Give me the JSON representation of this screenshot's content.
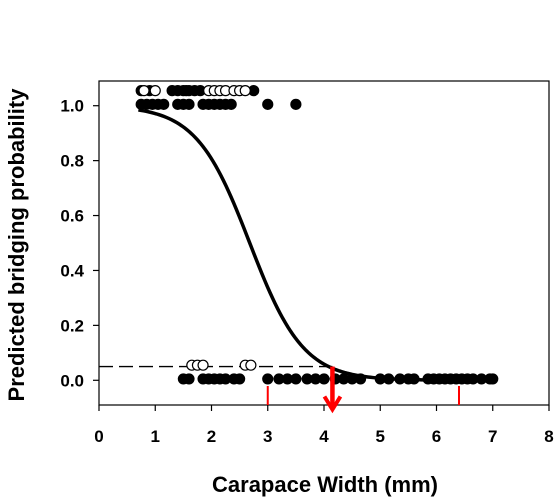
{
  "chart_data": {
    "type": "scatter",
    "title": "",
    "xlabel": "Carapace Width (mm)",
    "ylabel": "Predicted bridging probability",
    "xlim": [
      0,
      8
    ],
    "ylim": [
      -0.09,
      1.09
    ],
    "x_ticks": [
      0,
      1,
      2,
      3,
      4,
      5,
      6,
      7,
      8
    ],
    "y_ticks": [
      0.0,
      0.2,
      0.4,
      0.6,
      0.8,
      1.0
    ],
    "x_tick_labels": [
      "0",
      "1",
      "2",
      "3",
      "4",
      "5",
      "6",
      "7",
      "8"
    ],
    "y_tick_labels": [
      "0.0",
      "0.2",
      "0.4",
      "0.6",
      "0.8",
      "1.0"
    ],
    "grid": false,
    "legend": "none",
    "series": [
      {
        "style": "filled-circle",
        "color": "#000000",
        "points": [
          [
            0.75,
            1.055
          ],
          [
            0.9,
            1.055
          ],
          [
            1.3,
            1.055
          ],
          [
            1.4,
            1.055
          ],
          [
            1.5,
            1.055
          ],
          [
            1.55,
            1.055
          ],
          [
            1.6,
            1.055
          ],
          [
            1.7,
            1.055
          ],
          [
            1.8,
            1.055
          ],
          [
            2.75,
            1.055
          ],
          [
            0.75,
            1.005
          ],
          [
            0.85,
            1.005
          ],
          [
            0.95,
            1.005
          ],
          [
            1.05,
            1.005
          ],
          [
            1.15,
            1.005
          ],
          [
            1.4,
            1.005
          ],
          [
            1.5,
            1.005
          ],
          [
            1.6,
            1.005
          ],
          [
            1.85,
            1.005
          ],
          [
            1.95,
            1.005
          ],
          [
            2.05,
            1.005
          ],
          [
            2.15,
            1.005
          ],
          [
            2.25,
            1.005
          ],
          [
            2.35,
            1.005
          ],
          [
            3.0,
            1.005
          ],
          [
            3.5,
            1.005
          ],
          [
            1.5,
            0.005
          ],
          [
            1.6,
            0.005
          ],
          [
            1.85,
            0.005
          ],
          [
            1.95,
            0.005
          ],
          [
            2.05,
            0.005
          ],
          [
            2.15,
            0.005
          ],
          [
            2.25,
            0.005
          ],
          [
            2.4,
            0.005
          ],
          [
            2.5,
            0.005
          ],
          [
            3.0,
            0.005
          ],
          [
            3.2,
            0.005
          ],
          [
            3.35,
            0.005
          ],
          [
            3.5,
            0.005
          ],
          [
            3.7,
            0.005
          ],
          [
            3.85,
            0.005
          ],
          [
            4.0,
            0.005
          ],
          [
            4.2,
            0.005
          ],
          [
            4.35,
            0.005
          ],
          [
            4.5,
            0.005
          ],
          [
            4.65,
            0.005
          ],
          [
            5.0,
            0.005
          ],
          [
            5.15,
            0.005
          ],
          [
            5.35,
            0.005
          ],
          [
            5.5,
            0.005
          ],
          [
            5.6,
            0.005
          ],
          [
            5.85,
            0.005
          ],
          [
            5.95,
            0.005
          ],
          [
            6.05,
            0.005
          ],
          [
            6.15,
            0.005
          ],
          [
            6.25,
            0.005
          ],
          [
            6.35,
            0.005
          ],
          [
            6.45,
            0.005
          ],
          [
            6.55,
            0.005
          ],
          [
            6.65,
            0.005
          ],
          [
            6.8,
            0.005
          ],
          [
            6.95,
            0.005
          ],
          [
            7.0,
            0.005
          ]
        ]
      },
      {
        "style": "open-circle",
        "color": "#000000",
        "points": [
          [
            0.8,
            1.055
          ],
          [
            1.0,
            1.055
          ],
          [
            1.95,
            1.055
          ],
          [
            2.05,
            1.055
          ],
          [
            2.15,
            1.055
          ],
          [
            2.25,
            1.055
          ],
          [
            2.4,
            1.055
          ],
          [
            2.5,
            1.055
          ],
          [
            2.6,
            1.055
          ],
          [
            1.65,
            0.055
          ],
          [
            1.75,
            0.055
          ],
          [
            1.85,
            0.055
          ],
          [
            2.6,
            0.055
          ],
          [
            2.7,
            0.055
          ]
        ]
      }
    ],
    "logistic_curve": {
      "x_range": [
        0.7,
        6.2
      ],
      "midpoint": 2.68,
      "slope": 2.1,
      "color": "#000000"
    },
    "threshold_line": {
      "y": 0.05,
      "x_range": [
        0,
        4.15
      ],
      "style": "dashed"
    },
    "arrow": {
      "x": 4.15,
      "y_from": 0.05,
      "y_to": -0.11,
      "color": "#ff0000"
    },
    "red_marks": [
      {
        "x": 3.0,
        "color": "#ff0000"
      },
      {
        "x": 6.4,
        "color": "#ff0000"
      }
    ]
  }
}
